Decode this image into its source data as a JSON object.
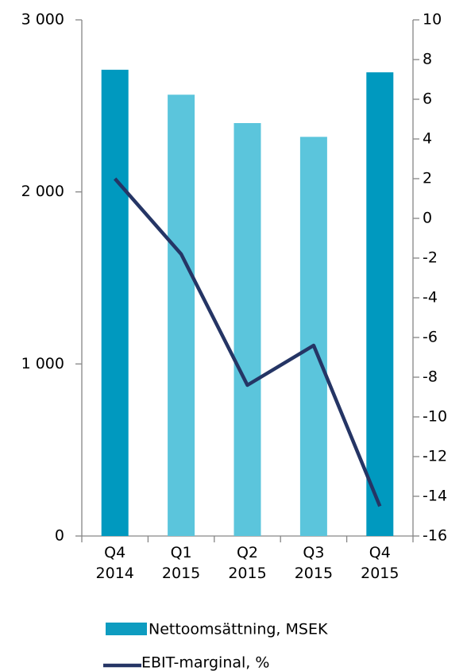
{
  "chart_data": {
    "type": "bar-line",
    "categories": [
      "Q4 2014",
      "Q1 2015",
      "Q2 2015",
      "Q3 2015",
      "Q4 2015"
    ],
    "series": [
      {
        "name": "Nettoomsättning, MSEK",
        "type": "bar",
        "color": "#0e9cc0",
        "colors": [
          "#0099bf",
          "#5bc5dc",
          "#5bc5dc",
          "#5bc5dc",
          "#0099bf"
        ],
        "values": [
          2710,
          2565,
          2400,
          2320,
          2695
        ]
      },
      {
        "name": "EBIT-marginal, %",
        "type": "line",
        "axis": "y2",
        "color": "#253565",
        "values": [
          2.0,
          -1.8,
          -8.4,
          -6.4,
          -14.5
        ]
      }
    ],
    "ylim": [
      0,
      3000
    ],
    "yticks": [
      0,
      {
        "value": 1000,
        "label": "1 000"
      },
      {
        "value": 2000,
        "label": "2 000"
      },
      {
        "value": 3000,
        "label": "3 000"
      }
    ],
    "y2lim": [
      -16,
      10
    ],
    "y2ticks": [
      -16,
      -14,
      -12,
      -10,
      -8,
      -6,
      -4,
      -2,
      0,
      2,
      4,
      6,
      8,
      10
    ]
  }
}
